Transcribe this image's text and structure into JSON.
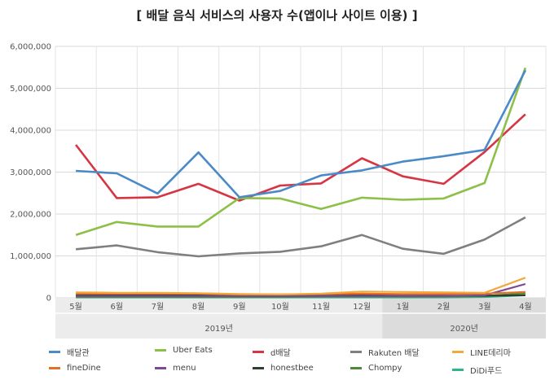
{
  "chart_data": {
    "type": "line",
    "title": "[ 배달 음식 서비스의 사용자 수(앱이나 사이트 이용) ]",
    "categories": [
      "5월",
      "6월",
      "7월",
      "8월",
      "9월",
      "10월",
      "11월",
      "12월",
      "1월",
      "2월",
      "3월",
      "4월"
    ],
    "year_groups": [
      {
        "label": "2019년",
        "count": 8
      },
      {
        "label": "2020년",
        "count": 4
      }
    ],
    "y_ticks": [
      "0",
      "1,000,000",
      "2,000,000",
      "3,000,000",
      "4,000,000",
      "5,000,000",
      "6,000,000"
    ],
    "ylim": [
      0,
      6000000
    ],
    "grid": true,
    "legend_position": "bottom",
    "series": [
      {
        "name": "배달관",
        "color": "#4a8ac6",
        "values": [
          3030000,
          2970000,
          2490000,
          3470000,
          2400000,
          2550000,
          2920000,
          3040000,
          3250000,
          3380000,
          3530000,
          5430000
        ]
      },
      {
        "name": "Uber Eats",
        "color": "#8cc048",
        "values": [
          1500000,
          1810000,
          1700000,
          1700000,
          2380000,
          2370000,
          2120000,
          2390000,
          2340000,
          2370000,
          2740000,
          5490000
        ]
      },
      {
        "name": "d배달",
        "color": "#d63543",
        "values": [
          3650000,
          2380000,
          2400000,
          2720000,
          2320000,
          2680000,
          2730000,
          3330000,
          2900000,
          2720000,
          3480000,
          4380000
        ]
      },
      {
        "name": "Rakuten 배달",
        "color": "#7f7f7f",
        "values": [
          1160000,
          1250000,
          1090000,
          990000,
          1060000,
          1100000,
          1230000,
          1500000,
          1170000,
          1050000,
          1390000,
          1920000
        ]
      },
      {
        "name": "LINE데리마",
        "color": "#f2a93a",
        "values": [
          130000,
          120000,
          120000,
          110000,
          90000,
          80000,
          100000,
          150000,
          140000,
          130000,
          120000,
          480000
        ]
      },
      {
        "name": "fineDine",
        "color": "#e0702a",
        "values": [
          100000,
          100000,
          100000,
          100000,
          80000,
          80000,
          90000,
          100000,
          90000,
          90000,
          100000,
          140000
        ]
      },
      {
        "name": "menu",
        "color": "#7a4a95",
        "values": [
          40000,
          40000,
          40000,
          40000,
          40000,
          40000,
          40000,
          40000,
          40000,
          40000,
          60000,
          330000
        ]
      },
      {
        "name": "honestbee",
        "color": "#2d3f2d",
        "values": [
          60000,
          60000,
          60000,
          60000,
          50000,
          50000,
          50000,
          60000,
          50000,
          50000,
          50000,
          60000
        ]
      },
      {
        "name": "Chompy",
        "color": "#4f8a3a",
        "values": [
          20000,
          20000,
          20000,
          20000,
          20000,
          20000,
          30000,
          30000,
          30000,
          30000,
          40000,
          110000
        ]
      },
      {
        "name": "DiDi푸드",
        "color": "#2fb58e",
        "values": [
          10000,
          10000,
          10000,
          10000,
          10000,
          10000,
          10000,
          10000,
          10000,
          10000,
          20000,
          60000
        ]
      }
    ]
  }
}
